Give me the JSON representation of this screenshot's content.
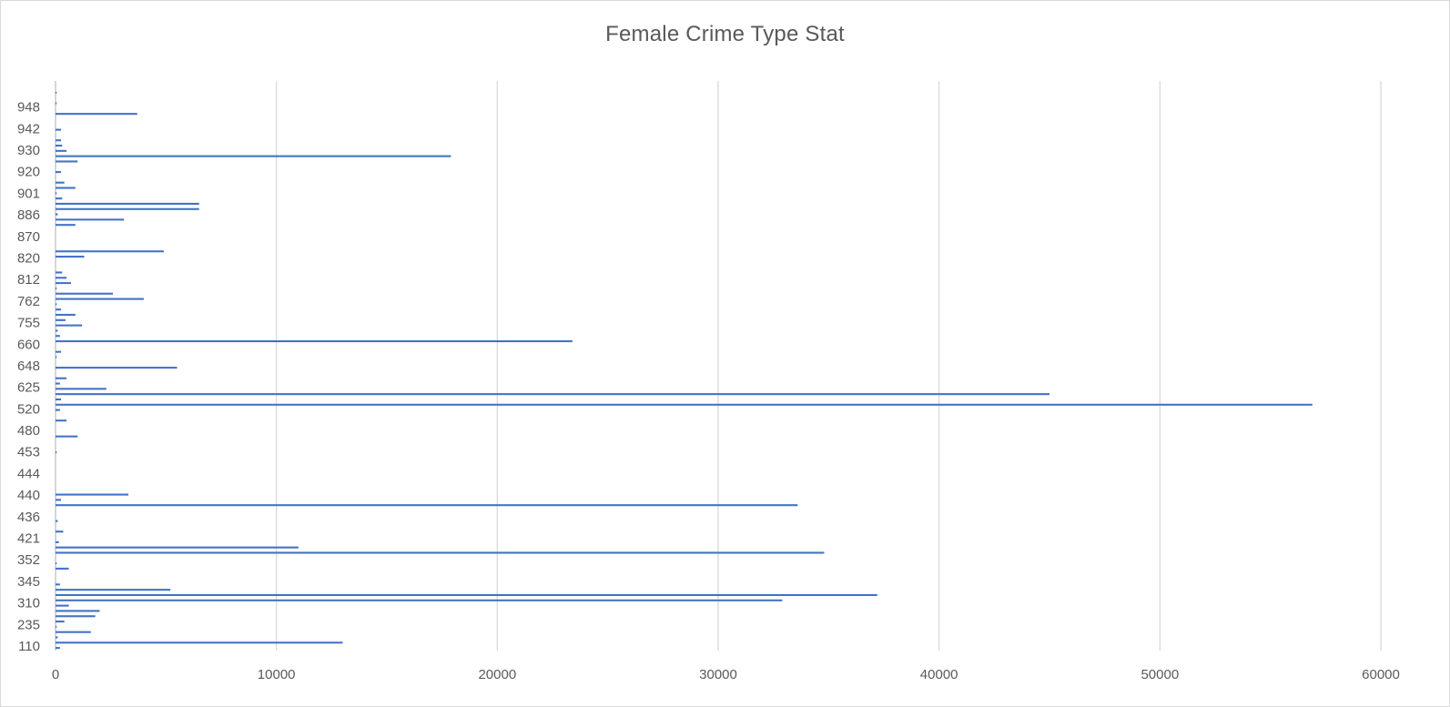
{
  "chart_data": {
    "type": "bar",
    "orientation": "horizontal",
    "title": "Female Crime Type Stat",
    "xlabel": "",
    "ylabel": "",
    "xlim": [
      0,
      60000
    ],
    "x_ticks": [
      0,
      10000,
      20000,
      30000,
      40000,
      50000,
      60000
    ],
    "gridlines": "vertical",
    "legend": "none",
    "colors": {
      "bar": "#4472c4",
      "grid": "#d9d9d9",
      "text": "#595959"
    },
    "y_tick_labels": [
      "110",
      "235",
      "310",
      "345",
      "352",
      "421",
      "436",
      "440",
      "444",
      "453",
      "480",
      "520",
      "625",
      "648",
      "660",
      "755",
      "762",
      "812",
      "820",
      "870",
      "886",
      "901",
      "920",
      "930",
      "942",
      "948"
    ],
    "values": [
      200,
      13000,
      100,
      1600,
      50,
      400,
      1800,
      2000,
      600,
      32900,
      37200,
      5200,
      200,
      0,
      0,
      600,
      50,
      0,
      34800,
      11000,
      150,
      0,
      350,
      0,
      100,
      0,
      0,
      33600,
      250,
      3300,
      0,
      0,
      0,
      0,
      0,
      0,
      0,
      50,
      0,
      0,
      1000,
      0,
      0,
      500,
      0,
      200,
      56900,
      250,
      45000,
      2300,
      200,
      500,
      0,
      5500,
      0,
      50,
      250,
      0,
      23400,
      200,
      100,
      1200,
      450,
      900,
      250,
      50,
      4000,
      2600,
      50,
      700,
      500,
      300,
      0,
      0,
      1300,
      4900,
      0,
      0,
      0,
      0,
      900,
      3100,
      100,
      6500,
      6500,
      300,
      50,
      900,
      400,
      0,
      250,
      0,
      1000,
      17900,
      500,
      300,
      250,
      0,
      250,
      0,
      0,
      3700,
      0,
      50,
      0,
      50
    ]
  }
}
